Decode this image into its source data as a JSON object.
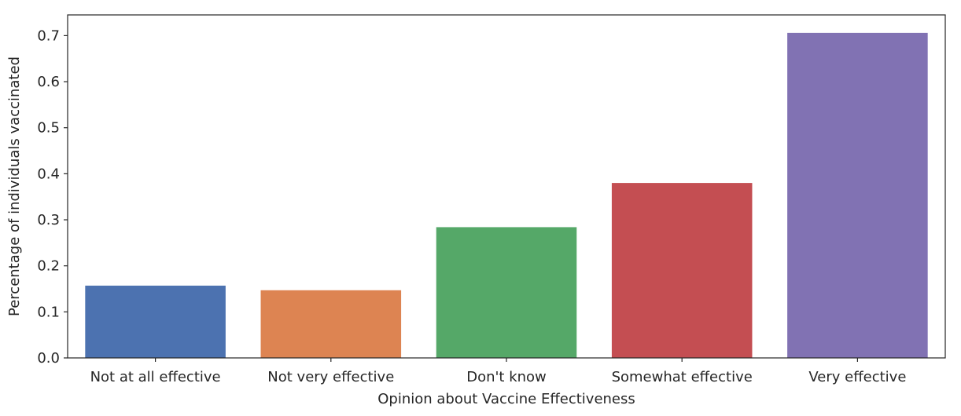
{
  "chart_data": {
    "type": "bar",
    "title": "",
    "xlabel": "Opinion about Vaccine Effectiveness",
    "ylabel": "Percentage of individuals vaccinated",
    "categories": [
      "Not at all effective",
      "Not very effective",
      "Don't know",
      "Somewhat effective",
      "Very effective"
    ],
    "values": [
      0.157,
      0.147,
      0.284,
      0.38,
      0.706
    ],
    "colors": [
      "#4c72b0",
      "#dd8452",
      "#55a868",
      "#c44e52",
      "#8172b3"
    ],
    "ylim": [
      0,
      0.745
    ],
    "yticks": [
      0.0,
      0.1,
      0.2,
      0.3,
      0.4,
      0.5,
      0.6,
      0.7
    ],
    "ytick_labels": [
      "0.0",
      "0.1",
      "0.2",
      "0.3",
      "0.4",
      "0.5",
      "0.6",
      "0.7"
    ],
    "grid": false,
    "legend": "none"
  }
}
